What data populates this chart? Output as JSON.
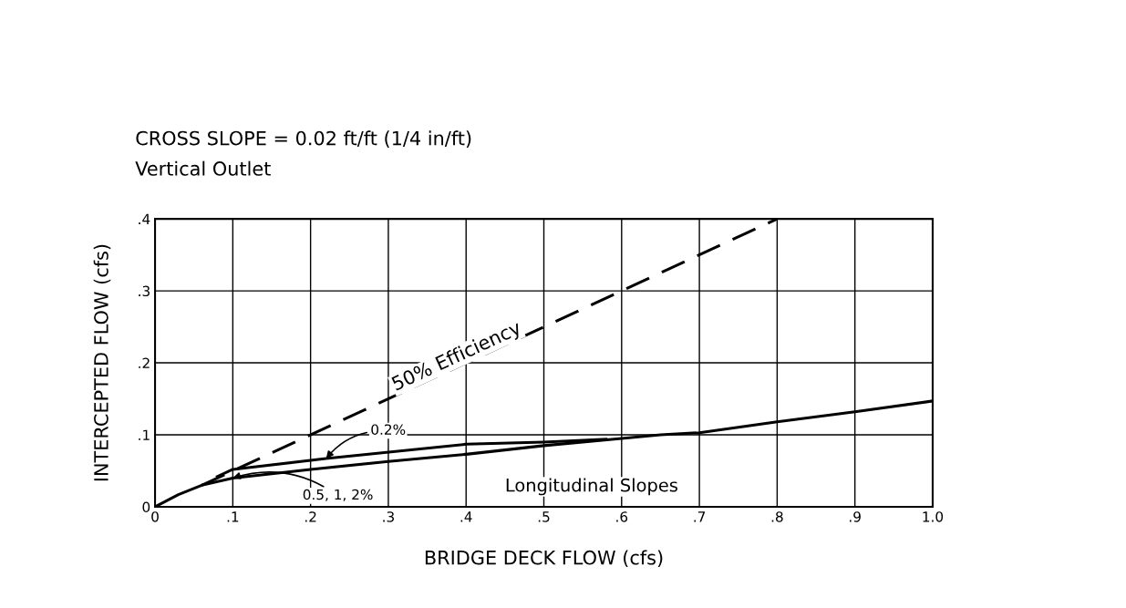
{
  "chart_data": {
    "type": "line",
    "title": "CROSS SLOPE = 0.02 ft/ft (1/4 in/ft)",
    "subtitle": "Vertical Outlet",
    "xlabel": "BRIDGE DECK FLOW (cfs)",
    "ylabel": "INTERCEPTED FLOW (cfs)",
    "series": [
      {
        "name": "50% Efficiency",
        "color": "#000000",
        "line_style": "dashed",
        "x": [
          0.06,
          0.8
        ],
        "values": [
          0.03,
          0.4
        ]
      },
      {
        "name": "0.2%",
        "color": "#000000",
        "line_style": "solid",
        "x": [
          0.08,
          0.1,
          0.22,
          0.4,
          0.5,
          0.58
        ],
        "values": [
          0.042,
          0.052,
          0.067,
          0.087,
          0.09,
          0.094
        ]
      },
      {
        "name": "0.5, 1, 2%",
        "color": "#000000",
        "line_style": "solid",
        "x": [
          0,
          0.03,
          0.06,
          0.1,
          0.2,
          0.3,
          0.4,
          0.5,
          0.6,
          0.65,
          0.7,
          0.8,
          0.9,
          1.0
        ],
        "values": [
          0,
          0.017,
          0.03,
          0.04,
          0.052,
          0.063,
          0.073,
          0.085,
          0.095,
          0.1,
          0.103,
          0.118,
          0.132,
          0.147
        ]
      }
    ],
    "annotations": [
      "Longitudinal Slopes"
    ],
    "xlim": [
      0,
      1.0
    ],
    "ylim": [
      0,
      0.4
    ],
    "xticks": [
      0,
      {
        "value": 0.1,
        "label": ".1"
      },
      {
        "value": 0.2,
        "label": ".2"
      },
      {
        "value": 0.3,
        "label": ".3"
      },
      {
        "value": 0.4,
        "label": ".4"
      },
      {
        "value": 0.5,
        "label": ".5"
      },
      {
        "value": 0.6,
        "label": ".6"
      },
      {
        "value": 0.7,
        "label": ".7"
      },
      {
        "value": 0.8,
        "label": ".8"
      },
      {
        "value": 0.9,
        "label": ".9"
      },
      {
        "value": 1.0,
        "label": "1.0"
      }
    ],
    "yticks": [
      0,
      {
        "value": 0.1,
        "label": ".1"
      },
      {
        "value": 0.2,
        "label": ".2"
      },
      {
        "value": 0.3,
        "label": ".3"
      },
      {
        "value": 0.4,
        "label": ".4"
      }
    ],
    "grid": true,
    "legend": false,
    "marker": "none"
  }
}
